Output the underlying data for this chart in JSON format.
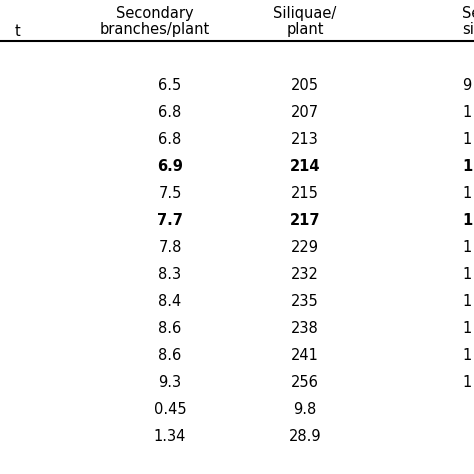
{
  "col1_header_line1": "Secondary",
  "col1_header_line2": "branches/plant",
  "col2_header_line1": "Siliquae/",
  "col2_header_line2": "plant",
  "col3_header_line1": "Se",
  "col3_header_line2": "si",
  "left_partial_header": "t",
  "col1_values": [
    "6.5",
    "6.8",
    "6.8",
    "6.9",
    "7.5",
    "7.7",
    "7.8",
    "8.3",
    "8.4",
    "8.6",
    "8.6",
    "9.3",
    "0.45",
    "1.34"
  ],
  "col2_values": [
    "205",
    "207",
    "213",
    "214",
    "215",
    "217",
    "229",
    "232",
    "235",
    "238",
    "241",
    "256",
    "9.8",
    "28.9"
  ],
  "col3_partial": [
    "9",
    "1",
    "1",
    "1",
    "1",
    "1",
    "1",
    "1",
    "1",
    "1",
    "1",
    "1",
    "",
    ""
  ],
  "col3_bold": [
    false,
    false,
    false,
    true,
    false,
    true,
    false,
    false,
    false,
    false,
    false,
    false,
    false,
    false
  ],
  "bold_rows": [
    3,
    5
  ],
  "bg_color": "#ffffff",
  "text_color": "#000000",
  "font_size": 10.5,
  "header_font_size": 10.5
}
